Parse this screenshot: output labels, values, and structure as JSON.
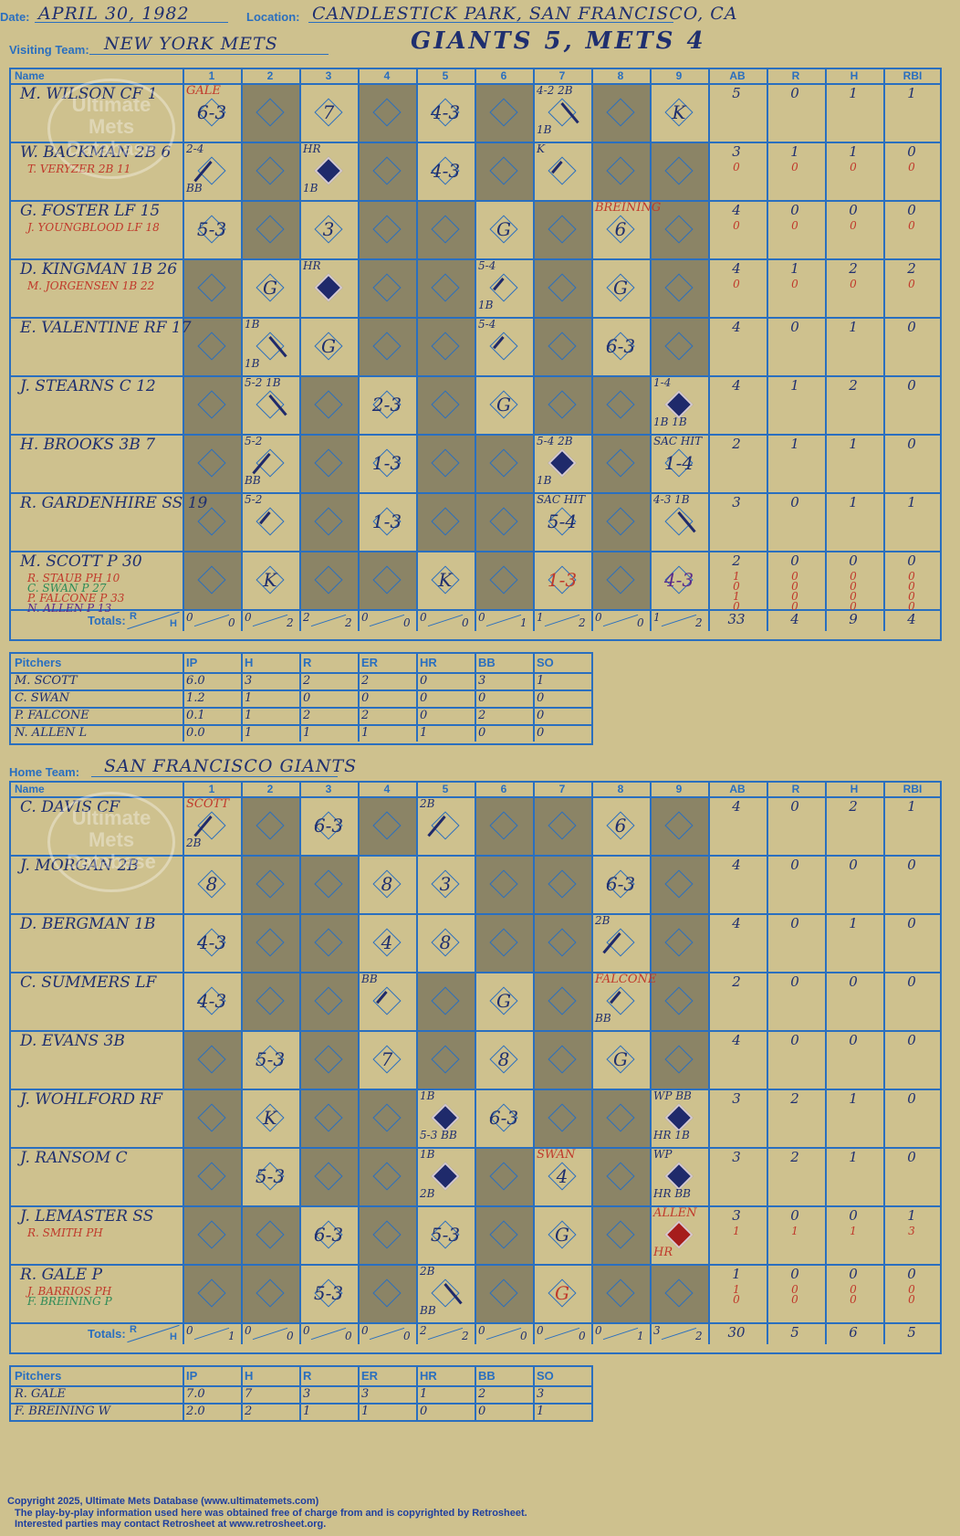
{
  "header": {
    "date_label": "Date:",
    "date": "APRIL 30, 1982",
    "location_label": "Location:",
    "location": "CANDLESTICK PARK, SAN FRANCISCO, CA",
    "visiting_label": "Visiting Team:",
    "visiting_team": "NEW YORK METS",
    "result": "GIANTS 5, METS 4",
    "home_label": "Home Team:",
    "home_team": "SAN FRANCISCO GIANTS"
  },
  "columns": {
    "name": "Name",
    "innings": [
      "1",
      "2",
      "3",
      "4",
      "5",
      "6",
      "7",
      "8",
      "9"
    ],
    "stats": [
      "AB",
      "R",
      "H",
      "RBI"
    ]
  },
  "watermark": {
    "line1": "Ultimate",
    "line2": "Mets",
    "line3": "Database",
    "url": "ultimatemets.com"
  },
  "visitors": {
    "rows": [
      {
        "name": "M. WILSON CF  1",
        "subs": [],
        "stats": [
          "5",
          "0",
          "1",
          "1"
        ],
        "substats": []
      },
      {
        "name": "W. BACKMAN 2B  6",
        "subs": [
          {
            "t": "T. VERYZER 2B  11",
            "c": "r"
          }
        ],
        "stats": [
          "3",
          "1",
          "1",
          "0"
        ],
        "substats": [
          [
            "0",
            "0",
            "0",
            "0"
          ]
        ]
      },
      {
        "name": "G. FOSTER LF  15",
        "subs": [
          {
            "t": "J. YOUNGBLOOD LF  18",
            "c": "r"
          }
        ],
        "stats": [
          "4",
          "0",
          "0",
          "0"
        ],
        "substats": [
          [
            "0",
            "0",
            "0",
            "0"
          ]
        ]
      },
      {
        "name": "D. KINGMAN 1B  26",
        "subs": [
          {
            "t": "M. JORGENSEN 1B  22",
            "c": "r"
          }
        ],
        "stats": [
          "4",
          "1",
          "2",
          "2"
        ],
        "substats": [
          [
            "0",
            "0",
            "0",
            "0"
          ]
        ]
      },
      {
        "name": "E. VALENTINE RF  17",
        "subs": [],
        "stats": [
          "4",
          "0",
          "1",
          "0"
        ],
        "substats": []
      },
      {
        "name": "J. STEARNS C  12",
        "subs": [],
        "stats": [
          "4",
          "1",
          "2",
          "0"
        ],
        "substats": []
      },
      {
        "name": "H. BROOKS 3B  7",
        "subs": [],
        "stats": [
          "2",
          "1",
          "1",
          "0"
        ],
        "substats": []
      },
      {
        "name": "R. GARDENHIRE SS  19",
        "subs": [],
        "stats": [
          "3",
          "0",
          "1",
          "1"
        ],
        "substats": []
      },
      {
        "name": "M. SCOTT P  30",
        "subs": [
          {
            "t": "R. STAUB PH  10",
            "c": "r"
          },
          {
            "t": "C. SWAN P  27",
            "c": "g"
          },
          {
            "t": "P. FALCONE P  33",
            "c": "r"
          },
          {
            "t": "N. ALLEN P  13",
            "c": "b"
          }
        ],
        "stats": [
          "2",
          "0",
          "0",
          "0"
        ],
        "substats": [
          [
            "1",
            "0",
            "0",
            "0"
          ],
          [
            "0",
            "0",
            "0",
            "0"
          ],
          [
            "1",
            "0",
            "0",
            "0"
          ],
          [
            "0",
            "0",
            "0",
            "0"
          ]
        ]
      }
    ],
    "totals_label": "Totals:",
    "rh": [
      "R",
      "H"
    ],
    "inning_totals": [
      [
        "0",
        "0"
      ],
      [
        "0",
        "2"
      ],
      [
        "2",
        "2"
      ],
      [
        "0",
        "0"
      ],
      [
        "0",
        "0"
      ],
      [
        "0",
        "1"
      ],
      [
        "1",
        "2"
      ],
      [
        "0",
        "0"
      ],
      [
        "1",
        "2"
      ]
    ],
    "totals": [
      "33",
      "4",
      "9",
      "4"
    ]
  },
  "visitor_pitchers": {
    "headers": [
      "Pitchers",
      "IP",
      "H",
      "R",
      "ER",
      "HR",
      "BB",
      "SO"
    ],
    "rows": [
      [
        "M. SCOTT",
        "6.0",
        "3",
        "2",
        "2",
        "0",
        "3",
        "1"
      ],
      [
        "C. SWAN",
        "1.2",
        "1",
        "0",
        "0",
        "0",
        "0",
        "0"
      ],
      [
        "P. FALCONE",
        "0.1",
        "1",
        "2",
        "2",
        "0",
        "2",
        "0"
      ],
      [
        "N. ALLEN  L",
        "0.0",
        "1",
        "1",
        "1",
        "1",
        "0",
        "0"
      ]
    ]
  },
  "home": {
    "rows": [
      {
        "name": "C. DAVIS CF",
        "subs": [],
        "stats": [
          "4",
          "0",
          "2",
          "1"
        ],
        "substats": []
      },
      {
        "name": "J. MORGAN 2B",
        "subs": [],
        "stats": [
          "4",
          "0",
          "0",
          "0"
        ],
        "substats": []
      },
      {
        "name": "D. BERGMAN 1B",
        "subs": [],
        "stats": [
          "4",
          "0",
          "1",
          "0"
        ],
        "substats": []
      },
      {
        "name": "C. SUMMERS LF",
        "subs": [],
        "stats": [
          "2",
          "0",
          "0",
          "0"
        ],
        "substats": []
      },
      {
        "name": "D. EVANS 3B",
        "subs": [],
        "stats": [
          "4",
          "0",
          "0",
          "0"
        ],
        "substats": []
      },
      {
        "name": "J. WOHLFORD RF",
        "subs": [],
        "stats": [
          "3",
          "2",
          "1",
          "0"
        ],
        "substats": []
      },
      {
        "name": "J. RANSOM C",
        "subs": [],
        "stats": [
          "3",
          "2",
          "1",
          "0"
        ],
        "substats": []
      },
      {
        "name": "J. LEMASTER SS",
        "subs": [
          {
            "t": "R. SMITH PH",
            "c": "r"
          }
        ],
        "stats": [
          "3",
          "0",
          "0",
          "1"
        ],
        "substats": [
          [
            "1",
            "1",
            "1",
            "3"
          ]
        ]
      },
      {
        "name": "R. GALE P",
        "subs": [
          {
            "t": "J. BARRIOS PH",
            "c": "r"
          },
          {
            "t": "F. BREINING P",
            "c": "g"
          }
        ],
        "stats": [
          "1",
          "0",
          "0",
          "0"
        ],
        "substats": [
          [
            "1",
            "0",
            "0",
            "0"
          ],
          [
            "0",
            "0",
            "0",
            "0"
          ]
        ]
      }
    ],
    "totals_label": "Totals:",
    "rh": [
      "R",
      "H"
    ],
    "inning_totals": [
      [
        "0",
        "1"
      ],
      [
        "0",
        "0"
      ],
      [
        "0",
        "0"
      ],
      [
        "0",
        "0"
      ],
      [
        "2",
        "2"
      ],
      [
        "0",
        "0"
      ],
      [
        "0",
        "0"
      ],
      [
        "0",
        "1"
      ],
      [
        "3",
        "2"
      ]
    ],
    "totals": [
      "30",
      "5",
      "6",
      "5"
    ]
  },
  "home_pitchers": {
    "headers": [
      "Pitchers",
      "IP",
      "H",
      "R",
      "ER",
      "HR",
      "BB",
      "SO"
    ],
    "rows": [
      [
        "R. GALE",
        "7.0",
        "7",
        "3",
        "3",
        "1",
        "2",
        "3"
      ],
      [
        "F. BREINING  W",
        "2.0",
        "2",
        "1",
        "1",
        "0",
        "0",
        "1"
      ]
    ]
  },
  "visitor_plays": [
    [
      {
        "p": "6-3",
        "n": [
          {
            "t": "GALE",
            "c": "red"
          }
        ]
      },
      null,
      {
        "p": "7"
      },
      null,
      {
        "p": "4-3"
      },
      null,
      {
        "d": "half2",
        "n": [
          {
            "t": "4-2 2B"
          },
          {
            "t": "1B"
          }
        ]
      },
      null,
      {
        "p": "K"
      }
    ],
    [
      {
        "d": "half1",
        "n": [
          {
            "t": "2-4"
          },
          {
            "t": "BB"
          }
        ]
      },
      null,
      {
        "d": "full",
        "n": [
          {
            "t": "HR"
          },
          {
            "t": "1B"
          }
        ]
      },
      null,
      {
        "p": "4-3"
      },
      null,
      {
        "d": "first",
        "n": [
          {
            "t": "K"
          }
        ]
      },
      null,
      null
    ],
    [
      {
        "p": "5-3"
      },
      null,
      {
        "p": "3"
      },
      null,
      null,
      {
        "p": "G"
      },
      null,
      {
        "p": "6",
        "n": [
          {
            "t": "BREINING",
            "c": "red"
          }
        ]
      },
      null
    ],
    [
      null,
      {
        "p": "G"
      },
      {
        "d": "full",
        "n": [
          {
            "t": "HR"
          }
        ]
      },
      null,
      null,
      {
        "d": "first",
        "n": [
          {
            "t": "5-4"
          },
          {
            "t": "1B"
          }
        ]
      },
      null,
      {
        "p": "G"
      },
      null
    ],
    [
      null,
      {
        "d": "half2",
        "n": [
          {
            "t": "1B"
          },
          {
            "t": "1B"
          }
        ]
      },
      {
        "p": "G"
      },
      null,
      null,
      {
        "d": "first",
        "n": [
          {
            "t": "5-4"
          }
        ]
      },
      null,
      {
        "p": "6-3"
      },
      null
    ],
    [
      null,
      {
        "d": "half2",
        "n": [
          {
            "t": "5-2 1B"
          }
        ]
      },
      null,
      {
        "p": "2-3"
      },
      null,
      {
        "p": "G"
      },
      null,
      null,
      {
        "d": "full",
        "n": [
          {
            "t": "1-4"
          },
          {
            "t": "1B  1B"
          }
        ]
      }
    ],
    [
      null,
      {
        "d": "half1",
        "n": [
          {
            "t": "5-2"
          },
          {
            "t": "BB"
          }
        ]
      },
      null,
      {
        "p": "1-3"
      },
      null,
      null,
      {
        "d": "full",
        "n": [
          {
            "t": "5-4 2B"
          },
          {
            "t": "1B"
          }
        ]
      },
      null,
      {
        "p": "1-4",
        "n": [
          {
            "t": "SAC HIT"
          }
        ]
      }
    ],
    [
      null,
      {
        "d": "first",
        "n": [
          {
            "t": "5-2"
          }
        ]
      },
      null,
      {
        "p": "1-3"
      },
      null,
      null,
      {
        "p": "5-4",
        "n": [
          {
            "t": "SAC HIT"
          }
        ]
      },
      null,
      {
        "d": "half2",
        "n": [
          {
            "t": "4-3 1B"
          }
        ]
      }
    ],
    [
      null,
      {
        "p": "K"
      },
      null,
      null,
      {
        "p": "K"
      },
      null,
      {
        "p": "1-3",
        "c": "red"
      },
      null,
      {
        "p": "4-3",
        "c": "pur"
      }
    ]
  ],
  "home_plays": [
    [
      {
        "d": "half1",
        "n": [
          {
            "t": "SCOTT",
            "c": "red"
          },
          {
            "t": "2B"
          }
        ]
      },
      null,
      {
        "p": "6-3"
      },
      null,
      {
        "d": "half1",
        "n": [
          {
            "t": "2B"
          }
        ]
      },
      null,
      null,
      {
        "p": "6"
      },
      null
    ],
    [
      {
        "p": "8"
      },
      null,
      null,
      {
        "p": "8"
      },
      {
        "p": "3"
      },
      null,
      null,
      {
        "p": "6-3"
      },
      null
    ],
    [
      {
        "p": "4-3"
      },
      null,
      null,
      {
        "p": "4"
      },
      {
        "p": "8"
      },
      null,
      null,
      {
        "d": "half1",
        "n": [
          {
            "t": "2B"
          }
        ]
      },
      null
    ],
    [
      {
        "p": "4-3"
      },
      null,
      null,
      {
        "d": "first",
        "n": [
          {
            "t": "BB"
          }
        ]
      },
      null,
      {
        "p": "G"
      },
      null,
      {
        "d": "first",
        "n": [
          {
            "t": "FALCONE",
            "c": "red"
          },
          {
            "t": "BB"
          }
        ]
      },
      null
    ],
    [
      null,
      {
        "p": "5-3"
      },
      null,
      {
        "p": "7"
      },
      null,
      {
        "p": "8"
      },
      null,
      {
        "p": "G"
      },
      null
    ],
    [
      null,
      {
        "p": "K"
      },
      null,
      null,
      {
        "d": "full",
        "n": [
          {
            "t": "1B"
          },
          {
            "t": "5-3 BB"
          }
        ]
      },
      {
        "p": "6-3"
      },
      null,
      null,
      {
        "d": "full",
        "n": [
          {
            "t": "WP BB"
          },
          {
            "t": "HR  1B"
          }
        ]
      }
    ],
    [
      null,
      {
        "p": "5-3"
      },
      null,
      null,
      {
        "d": "full",
        "n": [
          {
            "t": "1B"
          },
          {
            "t": "2B"
          }
        ]
      },
      null,
      {
        "p": "4",
        "n": [
          {
            "t": "SWAN",
            "c": "red"
          }
        ]
      },
      null,
      {
        "d": "full",
        "n": [
          {
            "t": "WP"
          },
          {
            "t": "HR BB"
          }
        ]
      }
    ],
    [
      null,
      null,
      {
        "p": "6-3"
      },
      null,
      {
        "p": "5-3"
      },
      null,
      {
        "p": "G"
      },
      null,
      {
        "d": "red",
        "n": [
          {
            "t": "ALLEN",
            "c": "red"
          },
          {
            "t": "HR",
            "c": "red"
          }
        ]
      }
    ],
    [
      null,
      null,
      {
        "p": "5-3"
      },
      null,
      {
        "d": "half2",
        "n": [
          {
            "t": "2B"
          },
          {
            "t": "BB"
          }
        ]
      },
      null,
      {
        "p": "G",
        "c": "red"
      },
      null,
      null
    ]
  ],
  "footer": {
    "line1": "Copyright 2025, Ultimate Mets Database (www.ultimatemets.com)",
    "line2": "The play-by-play information used here was obtained free of charge from and is copyrighted by Retrosheet.",
    "line3": "Interested parties may contact Retrosheet at www.retrosheet.org."
  }
}
